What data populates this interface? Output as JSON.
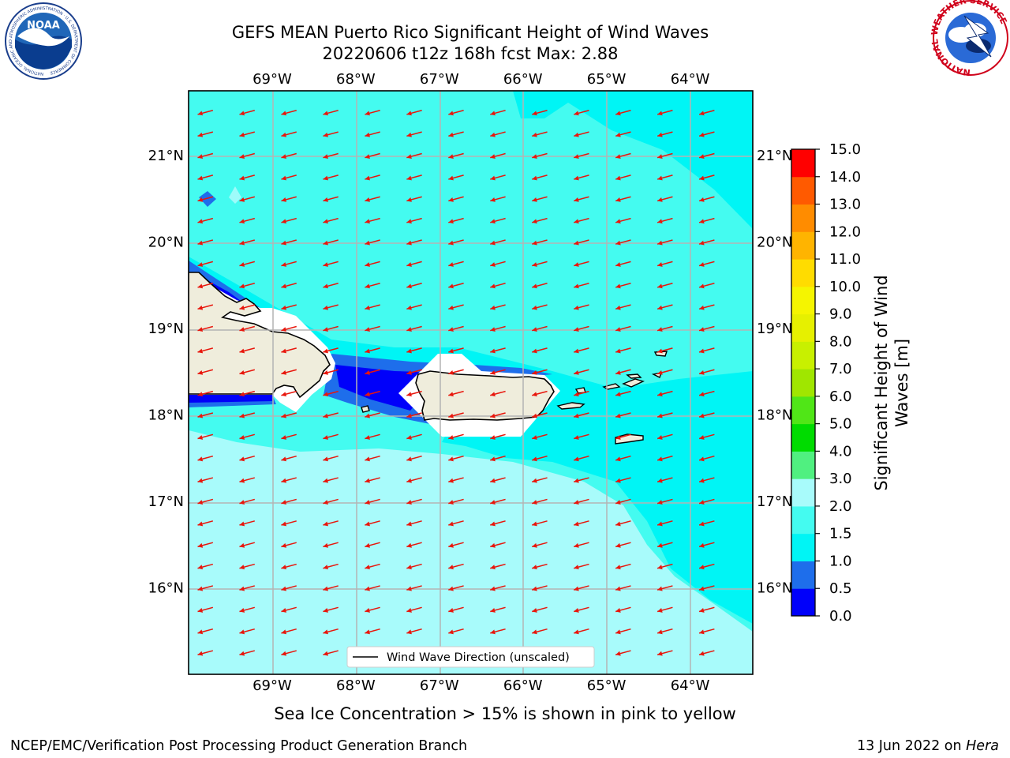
{
  "header": {
    "title_line1": "GEFS MEAN Puerto Rico Significant Height of Wind Waves",
    "title_line2": "20220606 t12z 168h fcst   Max: 2.88"
  },
  "logos": {
    "noaa_text": "NOAA",
    "noaa_ring_text": "NATIONAL OCEANIC AND ATMOSPHERIC ADMINISTRATION · U.S. DEPARTMENT OF COMMERCE",
    "nws_ring_text": "NATIONAL WEATHER SERVICE"
  },
  "map": {
    "lon_range": [
      -70.0,
      -63.25
    ],
    "lat_range": [
      15.0,
      21.75
    ],
    "lon_ticks": [
      -69,
      -68,
      -67,
      -66,
      -65,
      -64
    ],
    "lon_labels": [
      "69°W",
      "68°W",
      "67°W",
      "66°W",
      "65°W",
      "64°W"
    ],
    "lat_ticks": [
      16,
      17,
      18,
      19,
      20,
      21
    ],
    "lat_labels": [
      "16°N",
      "17°N",
      "18°N",
      "19°N",
      "20°N",
      "21°N"
    ],
    "wind_direction_deg_from": 75,
    "colors": {
      "land": "#efeddc",
      "arrow": "#e8160c",
      "grid": "#b4b4b4"
    },
    "legend_label": "Wind Wave Direction (unscaled)"
  },
  "colorbar": {
    "levels": [
      0.0,
      0.5,
      1.0,
      1.5,
      2.0,
      3.0,
      4.0,
      5.0,
      6.0,
      7.0,
      8.0,
      9.0,
      10.0,
      11.0,
      12.0,
      13.0,
      14.0,
      15.0
    ],
    "tick_labels": [
      "0.0",
      "0.5",
      "1.0",
      "1.5",
      "2.0",
      "3.0",
      "4.0",
      "5.0",
      "6.0",
      "7.0",
      "8.0",
      "9.0",
      "10.0",
      "11.0",
      "12.0",
      "13.0",
      "14.0",
      "15.0"
    ],
    "colors": [
      "#0000fa",
      "#1e6eeb",
      "#00f5f5",
      "#44fbf0",
      "#a8fbfb",
      "#50f080",
      "#00dc00",
      "#50e617",
      "#a0e600",
      "#c8f000",
      "#e6f000",
      "#f5f500",
      "#ffdc00",
      "#ffb400",
      "#ff8c00",
      "#ff5a00",
      "#ff0000"
    ],
    "label_line1": "Significant Height of Wind",
    "label_line2": "Waves [m]"
  },
  "footer": {
    "note": "Sea Ice Concentration > 15% is shown in pink to yellow",
    "credit": "NCEP/EMC/Verification Post Processing Product Generation Branch",
    "date": "13 Jun 2022 on ",
    "machine": "Hera"
  }
}
